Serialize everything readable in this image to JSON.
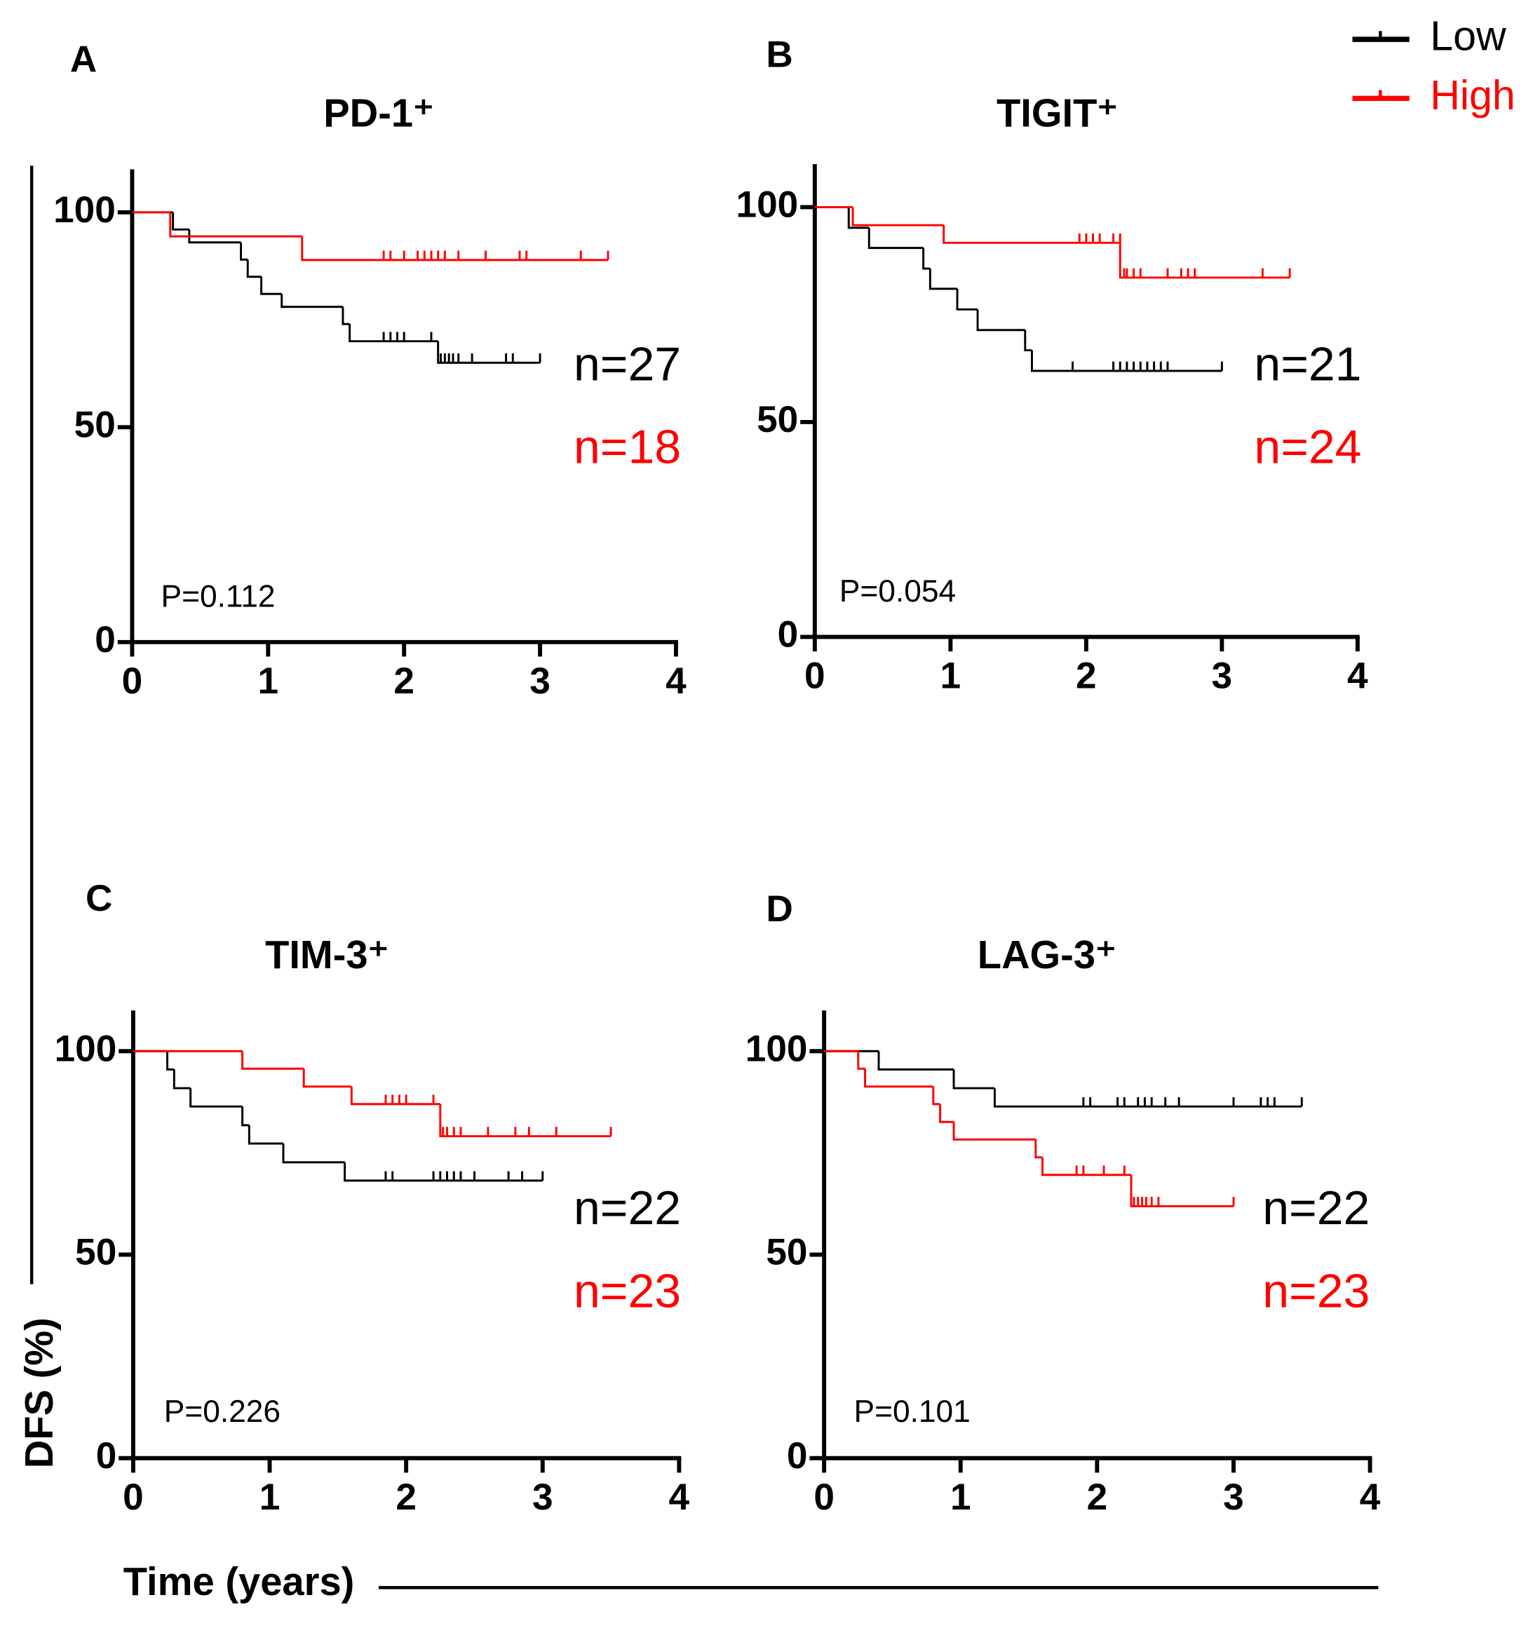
{
  "chart_data": [
    {
      "type": "step",
      "label": "A",
      "title": "PD-1⁺",
      "p_label": "P=0.112",
      "xlim": [
        0,
        4
      ],
      "xticks": [
        0,
        1,
        2,
        3,
        4
      ],
      "ylim": [
        0,
        110
      ],
      "yticks": [
        0,
        50,
        100
      ],
      "series": [
        {
          "name": "Low",
          "color": "#000000",
          "n_label": "n=27",
          "x": [
            0,
            0.3,
            0.42,
            0.8,
            0.85,
            0.95,
            1.1,
            1.55,
            1.6,
            2.25,
            3.0
          ],
          "values": [
            100,
            96,
            93,
            89,
            85,
            81,
            78,
            74,
            70,
            65,
            65
          ],
          "censor_x": [
            1.85,
            1.9,
            1.95,
            2.0,
            2.2,
            2.27,
            2.3,
            2.33,
            2.36,
            2.4,
            2.5,
            2.75,
            2.8,
            3.0
          ],
          "censor_y": [
            70,
            70,
            70,
            70,
            70,
            65,
            65,
            65,
            65,
            65,
            65,
            65,
            65,
            65
          ]
        },
        {
          "name": "High",
          "color": "#ff0000",
          "n_label": "n=18",
          "x": [
            0,
            0.28,
            1.25,
            3.5
          ],
          "values": [
            100,
            94.4,
            88.9,
            88.9
          ],
          "censor_x": [
            1.85,
            1.9,
            2.0,
            2.1,
            2.15,
            2.2,
            2.25,
            2.3,
            2.4,
            2.6,
            2.85,
            2.9,
            3.3,
            3.5
          ],
          "censor_y": [
            88.9,
            88.9,
            88.9,
            88.9,
            88.9,
            88.9,
            88.9,
            88.9,
            88.9,
            88.9,
            88.9,
            88.9,
            88.9,
            88.9
          ]
        }
      ]
    },
    {
      "type": "step",
      "label": "B",
      "title": "TIGIT⁺",
      "p_label": "P=0.054",
      "xlim": [
        0,
        4
      ],
      "xticks": [
        0,
        1,
        2,
        3,
        4
      ],
      "ylim": [
        0,
        110
      ],
      "yticks": [
        0,
        50,
        100
      ],
      "series": [
        {
          "name": "Low",
          "color": "#000000",
          "n_label": "n=21",
          "x": [
            0,
            0.25,
            0.4,
            0.8,
            0.85,
            1.05,
            1.2,
            1.55,
            1.6,
            3.0
          ],
          "values": [
            100,
            95.2,
            90.5,
            85.7,
            81,
            76.2,
            71.4,
            66.7,
            61.9,
            61.9
          ],
          "censor_x": [
            1.9,
            2.2,
            2.25,
            2.3,
            2.35,
            2.4,
            2.45,
            2.5,
            2.55,
            2.6,
            3.0
          ],
          "censor_y": [
            61.9,
            61.9,
            61.9,
            61.9,
            61.9,
            61.9,
            61.9,
            61.9,
            61.9,
            61.9,
            61.9
          ]
        },
        {
          "name": "High",
          "color": "#ff0000",
          "n_label": "n=24",
          "x": [
            0,
            0.28,
            0.95,
            2.25,
            3.5
          ],
          "values": [
            100,
            95.8,
            91.7,
            83.6,
            83.6
          ],
          "censor_x": [
            1.95,
            2.0,
            2.05,
            2.1,
            2.2,
            2.25,
            2.28,
            2.3,
            2.35,
            2.4,
            2.6,
            2.7,
            2.75,
            2.8,
            3.3,
            3.5
          ],
          "censor_y": [
            91.7,
            91.7,
            91.7,
            91.7,
            91.7,
            91.7,
            83.6,
            83.6,
            83.6,
            83.6,
            83.6,
            83.6,
            83.6,
            83.6,
            83.6,
            83.6
          ]
        }
      ]
    },
    {
      "type": "step",
      "label": "C",
      "title": "TIM-3⁺",
      "p_label": "P=0.226",
      "xlim": [
        0,
        4
      ],
      "xticks": [
        0,
        1,
        2,
        3,
        4
      ],
      "ylim": [
        0,
        110
      ],
      "yticks": [
        0,
        50,
        100
      ],
      "series": [
        {
          "name": "Low",
          "color": "#000000",
          "n_label": "n=22",
          "x": [
            0,
            0.25,
            0.3,
            0.42,
            0.8,
            0.85,
            1.1,
            1.55,
            3.0
          ],
          "values": [
            100,
            95.5,
            90.9,
            86.4,
            81.8,
            77.3,
            72.7,
            68.2,
            68.2
          ],
          "censor_x": [
            1.85,
            1.9,
            2.2,
            2.25,
            2.3,
            2.35,
            2.4,
            2.5,
            2.75,
            2.85,
            3.0
          ],
          "censor_y": [
            68.2,
            68.2,
            68.2,
            68.2,
            68.2,
            68.2,
            68.2,
            68.2,
            68.2,
            68.2,
            68.2
          ]
        },
        {
          "name": "High",
          "color": "#ff0000",
          "n_label": "n=23",
          "x": [
            0,
            0.8,
            1.25,
            1.6,
            2.25,
            3.5
          ],
          "values": [
            100,
            95.7,
            91.3,
            87.0,
            79.1,
            79.1
          ],
          "censor_x": [
            1.85,
            1.9,
            1.95,
            2.0,
            2.2,
            2.27,
            2.3,
            2.35,
            2.4,
            2.6,
            2.8,
            2.9,
            3.1,
            3.5
          ],
          "censor_y": [
            87.0,
            87.0,
            87.0,
            87.0,
            87.0,
            79.1,
            79.1,
            79.1,
            79.1,
            79.1,
            79.1,
            79.1,
            79.1,
            79.1
          ]
        }
      ]
    },
    {
      "type": "step",
      "label": "D",
      "title": "LAG-3⁺",
      "p_label": "P=0.101",
      "xlim": [
        0,
        4
      ],
      "xticks": [
        0,
        1,
        2,
        3,
        4
      ],
      "ylim": [
        0,
        110
      ],
      "yticks": [
        0,
        50,
        100
      ],
      "series": [
        {
          "name": "Low",
          "color": "#000000",
          "n_label": "n=22",
          "x": [
            0,
            0.4,
            0.95,
            1.25,
            3.5
          ],
          "values": [
            100,
            95.5,
            90.9,
            86.4,
            86.4
          ],
          "censor_x": [
            1.9,
            1.95,
            2.15,
            2.2,
            2.3,
            2.35,
            2.4,
            2.5,
            2.6,
            3.0,
            3.2,
            3.25,
            3.3,
            3.5
          ],
          "censor_y": [
            86.4,
            86.4,
            86.4,
            86.4,
            86.4,
            86.4,
            86.4,
            86.4,
            86.4,
            86.4,
            86.4,
            86.4,
            86.4,
            86.4
          ]
        },
        {
          "name": "High",
          "color": "#ff0000",
          "n_label": "n=23",
          "x": [
            0,
            0.25,
            0.3,
            0.8,
            0.85,
            0.95,
            1.55,
            1.6,
            2.25,
            3.0
          ],
          "values": [
            100,
            95.7,
            91.3,
            87,
            82.6,
            78.3,
            73.9,
            69.6,
            61.9,
            61.9
          ],
          "censor_x": [
            1.85,
            1.9,
            2.05,
            2.2,
            2.27,
            2.3,
            2.33,
            2.36,
            2.4,
            2.45,
            3.0
          ],
          "censor_y": [
            69.6,
            69.6,
            69.6,
            69.6,
            61.9,
            61.9,
            61.9,
            61.9,
            61.9,
            61.9,
            61.9
          ]
        }
      ]
    }
  ],
  "ylabel": "DFS (%)",
  "xlabel": "Time (years)"
}
